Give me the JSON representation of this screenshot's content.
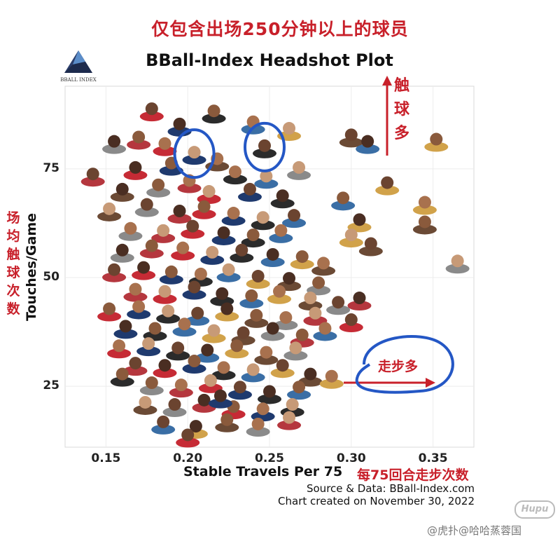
{
  "header": {
    "cn_title": "仅包含出场250分钟以上的球员",
    "logo_name": "BBALL INDEX"
  },
  "chart_data": {
    "type": "scatter",
    "title": "BBall-Index Headshot Plot",
    "xlabel": "Stable Travels Per 75",
    "ylabel": "Touches/Game",
    "xlabel_cn": "每75回合走步次数",
    "ylabel_cn": "场均触球次数",
    "xlim": [
      0.125,
      0.375
    ],
    "ylim": [
      11,
      94
    ],
    "x_ticks": [
      0.15,
      0.2,
      0.25,
      0.3,
      0.35
    ],
    "x_tick_labels": [
      "0.15",
      "0.20",
      "0.25",
      "0.30",
      "0.35"
    ],
    "y_ticks": [
      25,
      50,
      75
    ],
    "y_tick_labels": [
      "25",
      "50",
      "75"
    ],
    "grid": true,
    "marker": "player-headshot",
    "annotations": {
      "touches_cn": "触球多",
      "travels_cn": "走步多"
    },
    "highlighted_points": [
      {
        "x": 0.204,
        "y": 78.5
      },
      {
        "x": 0.247,
        "y": 80.0
      }
    ],
    "points": [
      {
        "x": 0.178,
        "y": 88.5
      },
      {
        "x": 0.195,
        "y": 85.0
      },
      {
        "x": 0.216,
        "y": 88.0
      },
      {
        "x": 0.24,
        "y": 85.5
      },
      {
        "x": 0.262,
        "y": 84.0
      },
      {
        "x": 0.3,
        "y": 82.5
      },
      {
        "x": 0.155,
        "y": 81.0
      },
      {
        "x": 0.17,
        "y": 82.0
      },
      {
        "x": 0.186,
        "y": 80.5
      },
      {
        "x": 0.204,
        "y": 78.5
      },
      {
        "x": 0.247,
        "y": 80.0
      },
      {
        "x": 0.31,
        "y": 81.0
      },
      {
        "x": 0.352,
        "y": 81.5
      },
      {
        "x": 0.218,
        "y": 77.0
      },
      {
        "x": 0.268,
        "y": 75.0
      },
      {
        "x": 0.142,
        "y": 73.5
      },
      {
        "x": 0.168,
        "y": 75.0
      },
      {
        "x": 0.19,
        "y": 76.0
      },
      {
        "x": 0.229,
        "y": 74.0
      },
      {
        "x": 0.248,
        "y": 73.0
      },
      {
        "x": 0.322,
        "y": 71.5
      },
      {
        "x": 0.16,
        "y": 70.0
      },
      {
        "x": 0.182,
        "y": 71.0
      },
      {
        "x": 0.201,
        "y": 72.0
      },
      {
        "x": 0.213,
        "y": 69.5
      },
      {
        "x": 0.238,
        "y": 70.0
      },
      {
        "x": 0.258,
        "y": 68.5
      },
      {
        "x": 0.295,
        "y": 68.0
      },
      {
        "x": 0.345,
        "y": 67.0
      },
      {
        "x": 0.152,
        "y": 65.5
      },
      {
        "x": 0.175,
        "y": 66.5
      },
      {
        "x": 0.195,
        "y": 65.0
      },
      {
        "x": 0.21,
        "y": 66.0
      },
      {
        "x": 0.228,
        "y": 64.5
      },
      {
        "x": 0.246,
        "y": 63.5
      },
      {
        "x": 0.265,
        "y": 64.0
      },
      {
        "x": 0.305,
        "y": 63.0
      },
      {
        "x": 0.345,
        "y": 62.5
      },
      {
        "x": 0.165,
        "y": 61.0
      },
      {
        "x": 0.185,
        "y": 60.5
      },
      {
        "x": 0.203,
        "y": 61.5
      },
      {
        "x": 0.222,
        "y": 60.0
      },
      {
        "x": 0.24,
        "y": 59.5
      },
      {
        "x": 0.257,
        "y": 60.5
      },
      {
        "x": 0.3,
        "y": 59.5
      },
      {
        "x": 0.312,
        "y": 57.5
      },
      {
        "x": 0.16,
        "y": 56.0
      },
      {
        "x": 0.178,
        "y": 57.0
      },
      {
        "x": 0.197,
        "y": 56.5
      },
      {
        "x": 0.215,
        "y": 55.5
      },
      {
        "x": 0.233,
        "y": 56.0
      },
      {
        "x": 0.252,
        "y": 55.0
      },
      {
        "x": 0.27,
        "y": 54.5
      },
      {
        "x": 0.283,
        "y": 53.0
      },
      {
        "x": 0.365,
        "y": 53.5
      },
      {
        "x": 0.155,
        "y": 51.5
      },
      {
        "x": 0.173,
        "y": 52.0
      },
      {
        "x": 0.19,
        "y": 51.0
      },
      {
        "x": 0.208,
        "y": 50.5
      },
      {
        "x": 0.225,
        "y": 51.5
      },
      {
        "x": 0.243,
        "y": 50.0
      },
      {
        "x": 0.262,
        "y": 49.5
      },
      {
        "x": 0.28,
        "y": 48.5
      },
      {
        "x": 0.168,
        "y": 47.0
      },
      {
        "x": 0.186,
        "y": 46.5
      },
      {
        "x": 0.204,
        "y": 47.5
      },
      {
        "x": 0.221,
        "y": 46.0
      },
      {
        "x": 0.239,
        "y": 45.5
      },
      {
        "x": 0.256,
        "y": 46.5
      },
      {
        "x": 0.275,
        "y": 45.0
      },
      {
        "x": 0.292,
        "y": 44.0
      },
      {
        "x": 0.305,
        "y": 45.0
      },
      {
        "x": 0.152,
        "y": 42.5
      },
      {
        "x": 0.17,
        "y": 43.0
      },
      {
        "x": 0.188,
        "y": 42.0
      },
      {
        "x": 0.206,
        "y": 41.5
      },
      {
        "x": 0.224,
        "y": 42.5
      },
      {
        "x": 0.242,
        "y": 41.0
      },
      {
        "x": 0.26,
        "y": 40.5
      },
      {
        "x": 0.278,
        "y": 41.5
      },
      {
        "x": 0.3,
        "y": 40.0
      },
      {
        "x": 0.162,
        "y": 38.5
      },
      {
        "x": 0.18,
        "y": 38.0
      },
      {
        "x": 0.198,
        "y": 39.0
      },
      {
        "x": 0.216,
        "y": 37.5
      },
      {
        "x": 0.234,
        "y": 37.0
      },
      {
        "x": 0.252,
        "y": 38.0
      },
      {
        "x": 0.27,
        "y": 36.5
      },
      {
        "x": 0.158,
        "y": 34.0
      },
      {
        "x": 0.176,
        "y": 34.5
      },
      {
        "x": 0.194,
        "y": 33.5
      },
      {
        "x": 0.212,
        "y": 33.0
      },
      {
        "x": 0.23,
        "y": 34.0
      },
      {
        "x": 0.248,
        "y": 32.5
      },
      {
        "x": 0.266,
        "y": 33.5
      },
      {
        "x": 0.168,
        "y": 30.0
      },
      {
        "x": 0.186,
        "y": 29.5
      },
      {
        "x": 0.204,
        "y": 30.5
      },
      {
        "x": 0.222,
        "y": 29.0
      },
      {
        "x": 0.24,
        "y": 28.5
      },
      {
        "x": 0.258,
        "y": 29.5
      },
      {
        "x": 0.275,
        "y": 27.5
      },
      {
        "x": 0.178,
        "y": 25.5
      },
      {
        "x": 0.196,
        "y": 25.0
      },
      {
        "x": 0.214,
        "y": 26.0
      },
      {
        "x": 0.232,
        "y": 24.5
      },
      {
        "x": 0.25,
        "y": 23.5
      },
      {
        "x": 0.268,
        "y": 24.5
      },
      {
        "x": 0.288,
        "y": 27.0
      },
      {
        "x": 0.174,
        "y": 21.0
      },
      {
        "x": 0.192,
        "y": 20.5
      },
      {
        "x": 0.21,
        "y": 21.5
      },
      {
        "x": 0.228,
        "y": 20.0
      },
      {
        "x": 0.246,
        "y": 19.5
      },
      {
        "x": 0.264,
        "y": 20.5
      },
      {
        "x": 0.185,
        "y": 16.5
      },
      {
        "x": 0.205,
        "y": 15.5
      },
      {
        "x": 0.224,
        "y": 17.0
      },
      {
        "x": 0.243,
        "y": 16.0
      },
      {
        "x": 0.262,
        "y": 17.5
      },
      {
        "x": 0.2,
        "y": 13.5
      },
      {
        "x": 0.22,
        "y": 22.5
      },
      {
        "x": 0.16,
        "y": 27.5
      },
      {
        "x": 0.284,
        "y": 38.0
      }
    ],
    "point_colors": [
      "#c62b35",
      "#1f3a6e",
      "#2b2b2b",
      "#3a6ea5",
      "#d1a24a",
      "#6b4a35",
      "#8a8a8a",
      "#b5373e"
    ]
  },
  "footer": {
    "source": "Source & Data: BBall-Index.com",
    "created": "Chart created on November 30, 2022"
  },
  "watermark": {
    "logo": "Hupu",
    "text": "@虎扑@哈哈蒸蓉国"
  }
}
